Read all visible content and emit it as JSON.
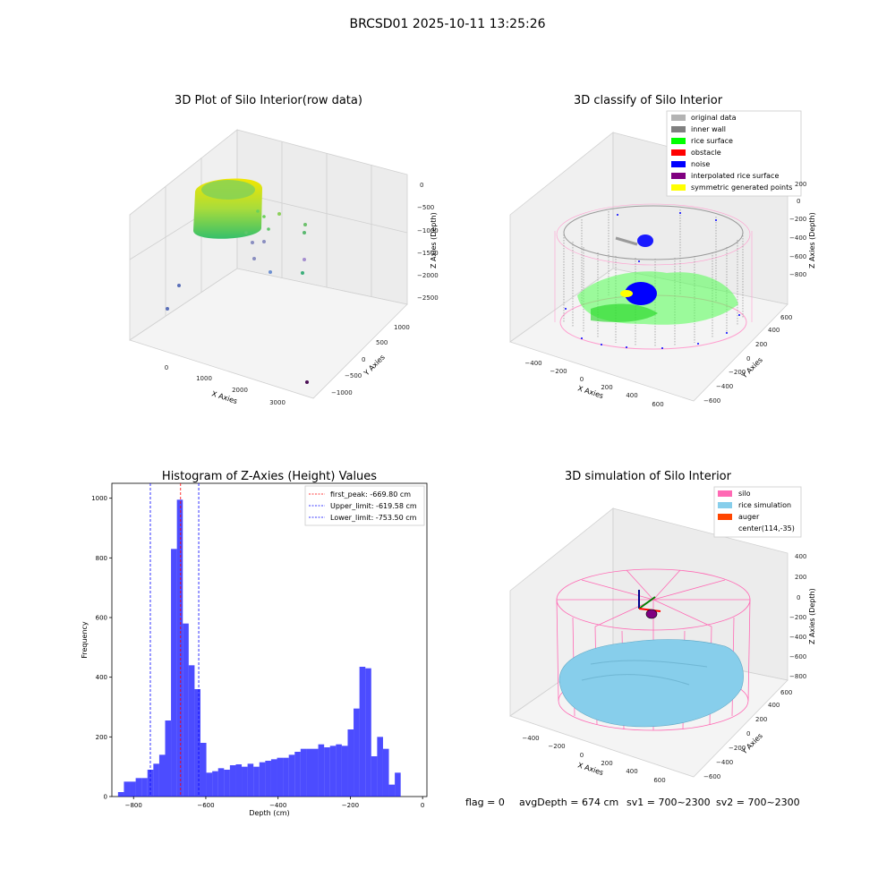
{
  "suptitle": "BRCSD01 2025-10-11 13:25:26",
  "status_line": {
    "flag": "flag = 0",
    "avg_depth": "avgDepth = 674 cm",
    "sv1": "sv1 = 700~2300",
    "sv2": "sv2 = 700~2300"
  },
  "panels": {
    "raw": {
      "title": "3D Plot of Silo Interior(row data)",
      "xlabel": "X Axies",
      "ylabel": "Y Axies",
      "zlabel": "Z Axies (Depth)",
      "xticks": [
        "0",
        "1000",
        "2000",
        "3000"
      ],
      "yticks": [
        "−1000",
        "−500",
        "0",
        "500",
        "1000"
      ],
      "zticks": [
        "0",
        "−500",
        "−1000",
        "−1500",
        "−2000",
        "−2500"
      ]
    },
    "classify": {
      "title": "3D classify of Silo Interior",
      "xlabel": "X Axies",
      "ylabel": "Y Axies",
      "zlabel": "Z Axies (Depth)",
      "xticks": [
        "−400",
        "−200",
        "0",
        "200",
        "400",
        "600"
      ],
      "yticks": [
        "−600",
        "−400",
        "−200",
        "0",
        "200",
        "400",
        "600"
      ],
      "zticks": [
        "200",
        "0",
        "−200",
        "−400",
        "−600",
        "−800"
      ],
      "legend": [
        {
          "label": "original data",
          "color": "#b3b3b3"
        },
        {
          "label": "inner wall",
          "color": "#808080"
        },
        {
          "label": "rice surface",
          "color": "#00ff00"
        },
        {
          "label": "obstacle",
          "color": "#ff0000"
        },
        {
          "label": "noise",
          "color": "#0000ff"
        },
        {
          "label": "interpolated rice surface",
          "color": "#800080"
        },
        {
          "label": "symmetric generated points",
          "color": "#ffff00"
        }
      ]
    },
    "simulation": {
      "title": "3D simulation of Silo Interior",
      "xlabel": "X Axies",
      "ylabel": "Y Axies",
      "zlabel": "Z Axies (Depth)",
      "xticks": [
        "−400",
        "−200",
        "0",
        "200",
        "400",
        "600"
      ],
      "yticks": [
        "−600",
        "−400",
        "−200",
        "0",
        "200",
        "400",
        "600"
      ],
      "zticks": [
        "400",
        "200",
        "0",
        "−200",
        "−400",
        "−600",
        "−800"
      ],
      "legend": [
        {
          "label": "silo",
          "color": "#ff69b4"
        },
        {
          "label": "rice simulation",
          "color": "#87ceeb"
        },
        {
          "label": "auger",
          "color": "#ff4500"
        },
        {
          "label": "center(114,-35)",
          "color": ""
        }
      ]
    }
  },
  "chart_data": {
    "type": "bar",
    "title": "Histogram of Z-Axies (Height) Values",
    "xlabel": "Depth (cm)",
    "ylabel": "Frequency",
    "xlim": [
      -860,
      12
    ],
    "ylim": [
      0,
      1050
    ],
    "xticks": [
      -800,
      -600,
      -400,
      -200,
      0
    ],
    "xtick_labels": [
      "−800",
      "−600",
      "−400",
      "−200",
      "0"
    ],
    "yticks": [
      0,
      200,
      400,
      600,
      800,
      1000
    ],
    "bar_color": "#0000ff",
    "bin_edges_start": -843,
    "bin_width": 16.3,
    "values": [
      15,
      50,
      50,
      62,
      62,
      90,
      110,
      140,
      255,
      830,
      995,
      580,
      440,
      360,
      180,
      80,
      85,
      95,
      90,
      105,
      108,
      100,
      110,
      100,
      115,
      120,
      125,
      130,
      130,
      140,
      150,
      160,
      160,
      160,
      175,
      165,
      170,
      175,
      170,
      225,
      295,
      435,
      430,
      135,
      200,
      160,
      40,
      80
    ],
    "vlines": [
      {
        "label": "first_peak: -669.80 cm",
        "x": -669.8,
        "color": "#ff0000"
      },
      {
        "label": "Upper_limit: -619.58 cm",
        "x": -619.58,
        "color": "#0000ff"
      },
      {
        "label": "Lower_limit: -753.50 cm",
        "x": -753.5,
        "color": "#0000ff"
      }
    ]
  }
}
